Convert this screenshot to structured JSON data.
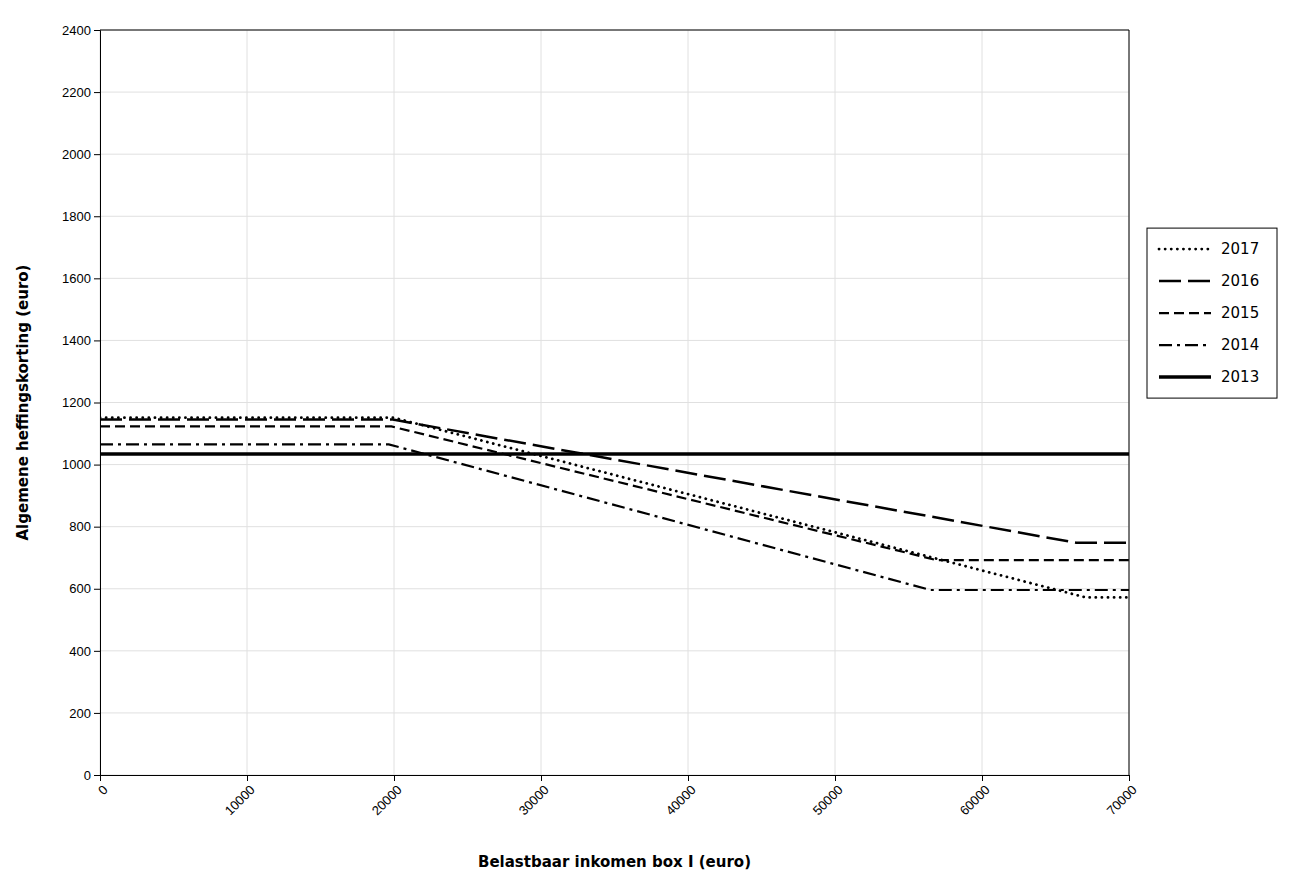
{
  "chart_data": {
    "type": "line",
    "xlabel": "Belastbaar inkomen box I (euro)",
    "ylabel": "Algemene heffingskorting (euro)",
    "xlim": [
      0,
      70000
    ],
    "ylim": [
      0,
      2400
    ],
    "xticks": [
      0,
      10000,
      20000,
      30000,
      40000,
      50000,
      60000,
      70000
    ],
    "yticks": [
      0,
      200,
      400,
      600,
      800,
      1000,
      1200,
      1400,
      1600,
      1800,
      2000,
      2200,
      2400
    ],
    "grid": true,
    "legend": "right",
    "series": [
      {
        "name": "2013",
        "color": "#000000",
        "line_style": "solid",
        "x": [
          0,
          70000
        ],
        "values": [
          1034,
          1034
        ]
      },
      {
        "name": "2014",
        "color": "#000000",
        "line_style": "dashdot",
        "x": [
          0,
          19645,
          56495,
          70000
        ],
        "values": [
          1065,
          1065,
          596,
          596
        ]
      },
      {
        "name": "2015",
        "color": "#000000",
        "line_style": "dashed",
        "x": [
          0,
          19822,
          56935,
          70000
        ],
        "values": [
          1123,
          1123,
          692,
          692
        ]
      },
      {
        "name": "2016",
        "color": "#000000",
        "line_style": "longdash",
        "x": [
          0,
          19922,
          66417,
          70000
        ],
        "values": [
          1145,
          1145,
          748,
          748
        ]
      },
      {
        "name": "2017",
        "color": "#000000",
        "line_style": "dotted",
        "x": [
          0,
          19982,
          67072,
          70000
        ],
        "values": [
          1151,
          1151,
          572,
          572
        ]
      }
    ]
  }
}
